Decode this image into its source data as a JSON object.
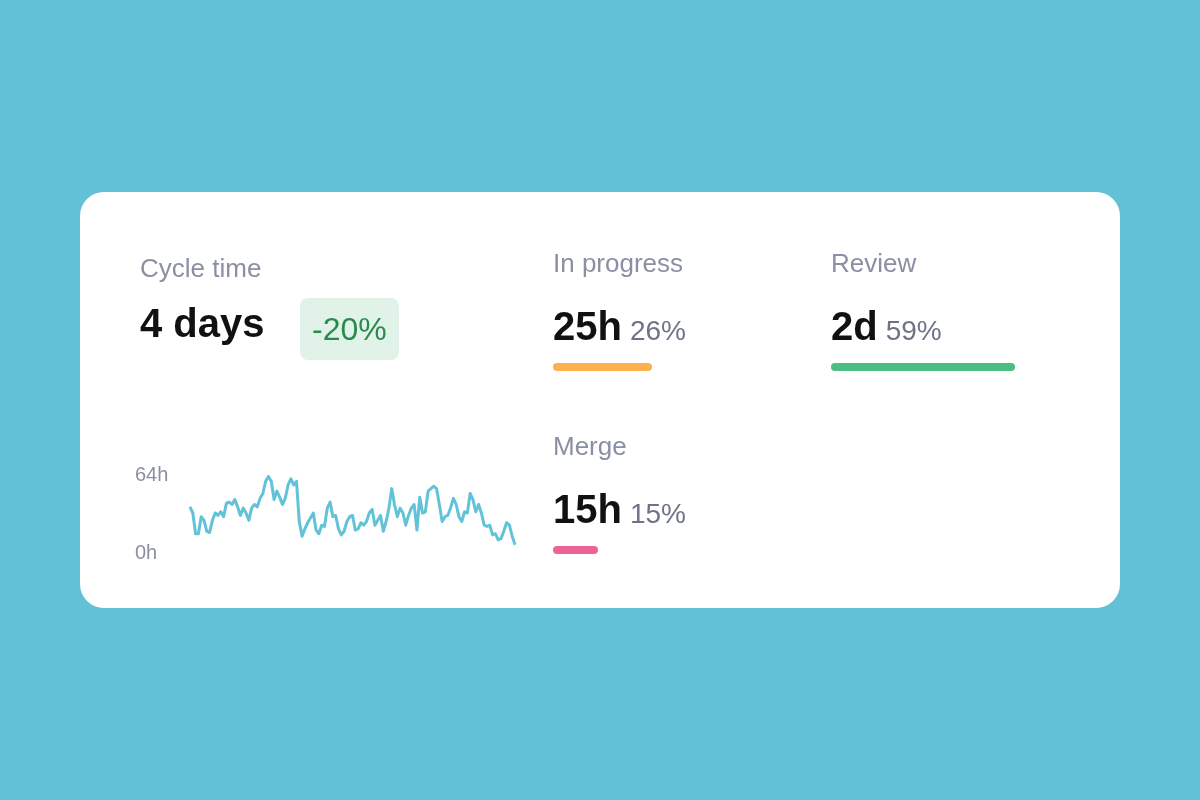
{
  "chart_data": [
    {
      "type": "line",
      "title": "Cycle time",
      "subtitle": "4 days",
      "annotations": [
        "-20%"
      ],
      "tick_labels": "y",
      "categories": [
        null,
        null,
        null,
        null,
        null,
        null,
        null,
        null,
        null,
        null,
        null,
        null,
        null,
        null,
        null,
        null,
        null,
        null,
        null,
        null,
        null,
        null,
        null,
        null,
        null,
        null,
        null,
        null,
        null,
        null,
        null,
        null,
        null,
        null,
        null,
        null,
        null,
        null,
        null,
        null,
        null,
        null,
        null,
        null,
        null,
        null,
        null,
        null,
        null,
        null,
        null,
        null,
        null,
        null,
        null,
        null,
        null,
        null,
        null,
        null,
        null,
        null,
        null,
        null,
        null,
        null,
        null,
        null,
        null,
        null,
        null,
        null,
        null,
        null,
        null,
        null,
        null,
        null,
        null,
        null,
        null,
        null,
        null,
        null,
        null,
        null,
        null,
        null,
        null,
        null,
        null,
        null,
        null,
        null,
        null,
        null,
        null,
        null,
        null,
        null,
        null,
        null,
        null,
        null,
        null,
        null,
        null,
        null,
        null,
        null,
        null,
        null,
        null,
        null,
        null,
        null,
        null
      ],
      "series": [
        {
          "color": "#62c3d8",
          "values": [
            37,
            32,
            15,
            15,
            29,
            26,
            17,
            16,
            26,
            32,
            30,
            33,
            29,
            40,
            41,
            39,
            43,
            37,
            30,
            36,
            32,
            26,
            36,
            39,
            37,
            44,
            48,
            58,
            62,
            58,
            43,
            50,
            45,
            39,
            44,
            55,
            60,
            55,
            58,
            25,
            13,
            19,
            24,
            28,
            32,
            18,
            15,
            22,
            21,
            36,
            41,
            29,
            30,
            19,
            14,
            17,
            25,
            29,
            30,
            18,
            19,
            24,
            22,
            25,
            32,
            35,
            22,
            26,
            30,
            17,
            25,
            36,
            52,
            39,
            29,
            36,
            32,
            22,
            30,
            36,
            39,
            18,
            45,
            32,
            33,
            50,
            52,
            54,
            52,
            39,
            25,
            29,
            30,
            36,
            44,
            39,
            29,
            25,
            33,
            32,
            48,
            43,
            33,
            39,
            32,
            22,
            21,
            22,
            14,
            15,
            10,
            11,
            17,
            24,
            22,
            13,
            6
          ]
        }
      ],
      "ylim": [
        0,
        64
      ],
      "yticks": [
        {
          "value": 0,
          "label": "0h"
        },
        {
          "value": 64,
          "label": "64h"
        }
      ]
    },
    {
      "type": "other",
      "annotations": [
        "In progress",
        "25h",
        "26%",
        "Review",
        "2d",
        "59%",
        "Merge",
        "15h",
        "15%"
      ]
    }
  ]
}
